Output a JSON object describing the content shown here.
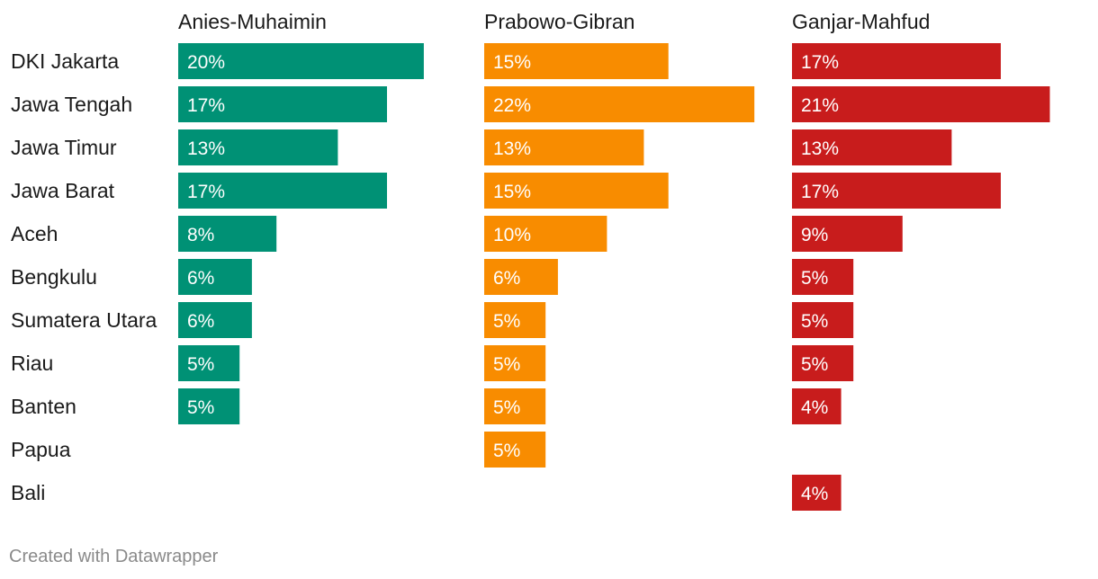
{
  "chart_data": {
    "type": "bar",
    "orientation": "horizontal",
    "layout": "small-multiples",
    "categories": [
      "DKI Jakarta",
      "Jawa Tengah",
      "Jawa Timur",
      "Jawa Barat",
      "Aceh",
      "Bengkulu",
      "Sumatera Utara",
      "Riau",
      "Banten",
      "Papua",
      "Bali"
    ],
    "series": [
      {
        "name": "Anies-Muhaimin",
        "color": "#009175",
        "values": [
          20,
          17,
          13,
          17,
          8,
          6,
          6,
          5,
          5,
          null,
          null
        ],
        "labels": [
          "20%",
          "17%",
          "13%",
          "17%",
          "8%",
          "6%",
          "6%",
          "5%",
          "5%",
          "",
          ""
        ]
      },
      {
        "name": "Prabowo-Gibran",
        "color": "#f88c00",
        "values": [
          15,
          22,
          13,
          15,
          10,
          6,
          5,
          5,
          5,
          5,
          null
        ],
        "labels": [
          "15%",
          "22%",
          "13%",
          "15%",
          "10%",
          "6%",
          "5%",
          "5%",
          "5%",
          "5%",
          ""
        ]
      },
      {
        "name": "Ganjar-Mahfud",
        "color": "#c81c1c",
        "values": [
          17,
          21,
          13,
          17,
          9,
          5,
          5,
          5,
          4,
          null,
          4
        ],
        "labels": [
          "17%",
          "21%",
          "13%",
          "17%",
          "9%",
          "5%",
          "5%",
          "5%",
          "4%",
          "",
          "4%"
        ]
      }
    ],
    "value_suffix": "%",
    "xlim": [
      0,
      22.5
    ],
    "grid": false,
    "legend": "none"
  },
  "footer": {
    "credit": "Created with Datawrapper"
  }
}
